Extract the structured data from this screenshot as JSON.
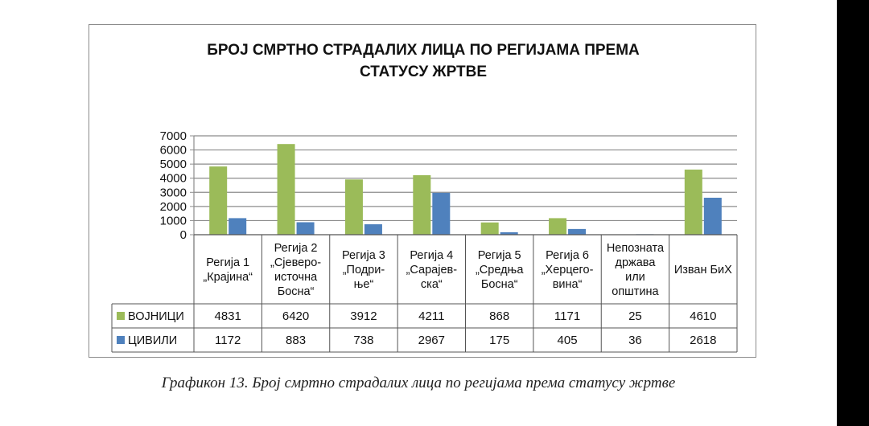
{
  "chart_data": {
    "type": "bar",
    "title_lines": [
      "БРОЈ СМРТНО СТРАДАЛИХ ЛИЦА ПО РЕГИЈАМА ПРЕМА",
      "СТАТУСУ ЖРТВЕ"
    ],
    "ylim": [
      0,
      7000
    ],
    "yticks": [
      0,
      1000,
      2000,
      3000,
      4000,
      5000,
      6000,
      7000
    ],
    "grid": true,
    "categories": [
      [
        "Регија 1",
        "„Крајина“"
      ],
      [
        "Регија 2",
        "„Сјеверо-",
        "источна",
        "Босна“"
      ],
      [
        "Регија 3",
        "„Подри-",
        "ње“"
      ],
      [
        "Регија 4",
        "„Сарајев-",
        "ска“"
      ],
      [
        "Регија 5",
        "„Средња",
        "Босна“"
      ],
      [
        "Регија 6",
        "„Херцего-",
        "вина“"
      ],
      [
        "Непозната",
        "држава",
        "или",
        "општина"
      ],
      [
        "Изван БиХ"
      ]
    ],
    "series": [
      {
        "name": "ВОЈНИЦИ",
        "color": "#9bbb59",
        "values": [
          4831,
          6420,
          3912,
          4211,
          868,
          1171,
          25,
          4610
        ]
      },
      {
        "name": "ЦИВИЛИ",
        "color": "#4f81bd",
        "values": [
          1172,
          883,
          738,
          2967,
          175,
          405,
          36,
          2618
        ]
      }
    ]
  },
  "caption": "Графикон 13. Број смртно страдалих лица по регијама према статусу жртве",
  "colors": {
    "border": "#8c8c8c",
    "grid": "#8c8c8c",
    "text": "#111111"
  }
}
